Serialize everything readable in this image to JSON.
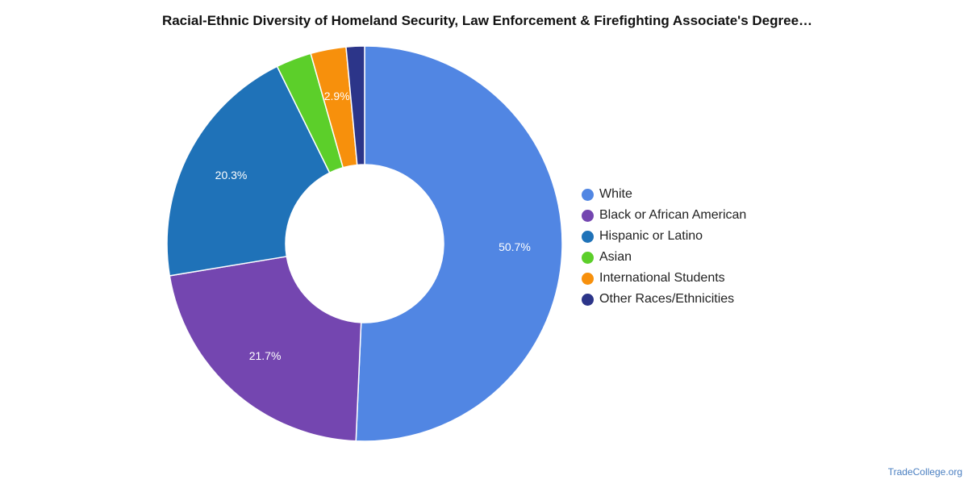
{
  "chart_data": {
    "type": "pie",
    "title": "Racial-Ethnic Diversity of Homeland Security, Law Enforcement & Firefighting Associate's Degree…",
    "categories": [
      "White",
      "Black or African American",
      "Hispanic or Latino",
      "Asian",
      "International Students",
      "Other Races/Ethnicities"
    ],
    "values": [
      50.7,
      21.7,
      20.3,
      2.9,
      2.9,
      1.5
    ],
    "value_labels": [
      "50.7%",
      "21.7%",
      "20.3%",
      "",
      "2.9%",
      ""
    ],
    "colors": [
      "#5186e3",
      "#7446b0",
      "#1f72b8",
      "#5ccf2a",
      "#f7900c",
      "#2c3589"
    ],
    "legend_position": "right",
    "donut": true
  },
  "footer": {
    "source": "TradeCollege.org"
  }
}
